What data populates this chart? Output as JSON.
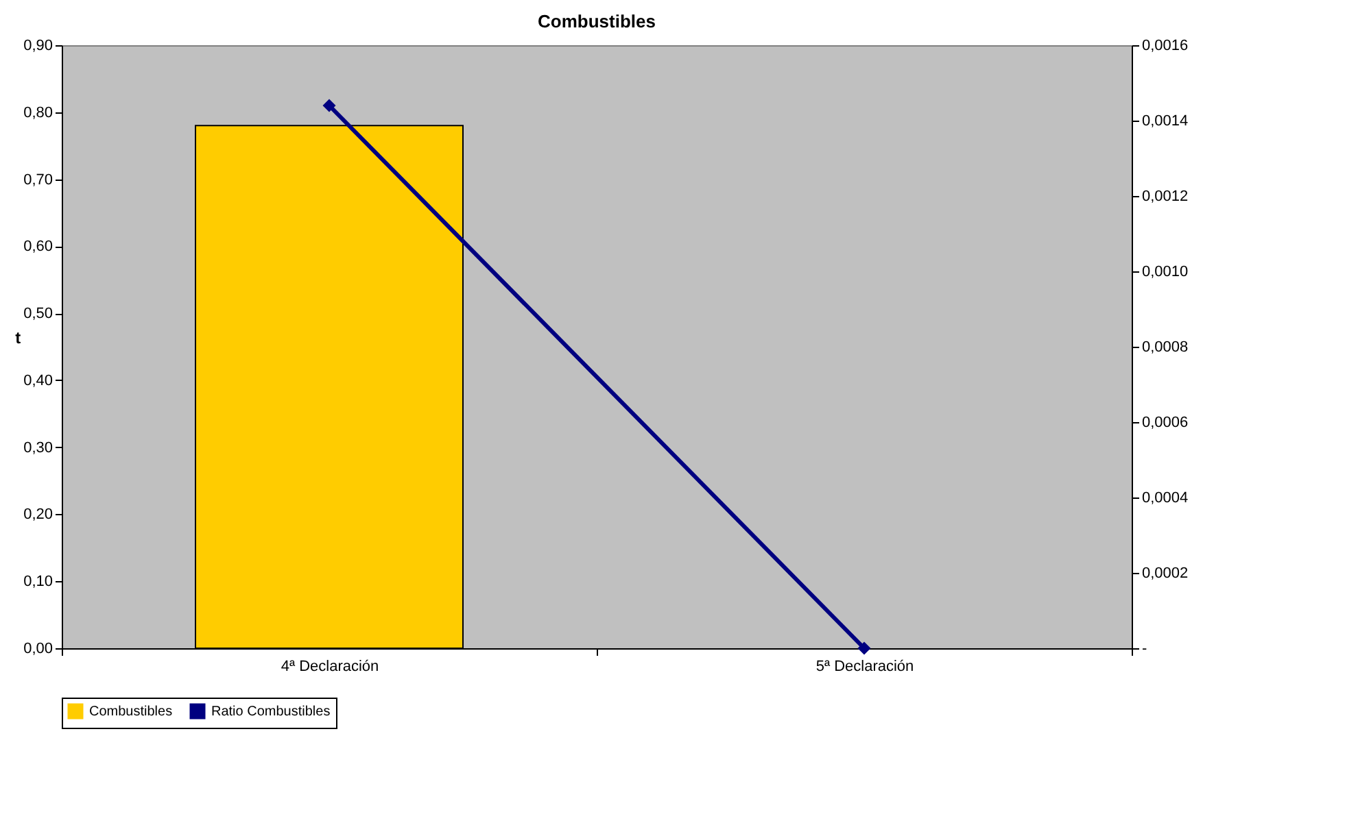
{
  "chart_data": {
    "type": "bar",
    "title": "Combustibles",
    "ylabel": "t",
    "categories": [
      "4ª Declaración",
      "5ª Declaración"
    ],
    "series": [
      {
        "name": "Combustibles",
        "color": "#ffcc00",
        "values": [
          0.78,
          null
        ]
      },
      {
        "name": "Ratio Combustibles",
        "type": "line",
        "axis": "y2",
        "color": "#000080",
        "marker": "diamond",
        "values": [
          0.00144,
          0
        ]
      }
    ],
    "ylim": [
      0,
      0.9
    ],
    "yticks": [
      {
        "value": 0,
        "label": "0,00"
      },
      {
        "value": 0.1,
        "label": "0,10"
      },
      {
        "value": 0.2,
        "label": "0,20"
      },
      {
        "value": 0.3,
        "label": "0,30"
      },
      {
        "value": 0.4,
        "label": "0,40"
      },
      {
        "value": 0.5,
        "label": "0,50"
      },
      {
        "value": 0.6,
        "label": "0,60"
      },
      {
        "value": 0.7,
        "label": "0,70"
      },
      {
        "value": 0.8,
        "label": "0,80"
      },
      {
        "value": 0.9,
        "label": "0,90"
      }
    ],
    "y2lim": [
      0,
      0.0016
    ],
    "y2ticks": [
      {
        "value": 0,
        "label": "-"
      },
      {
        "value": 0.0002,
        "label": "0,0002"
      },
      {
        "value": 0.0004,
        "label": "0,0004"
      },
      {
        "value": 0.0006,
        "label": "0,0006"
      },
      {
        "value": 0.0008,
        "label": "0,0008"
      },
      {
        "value": 0.001,
        "label": "0,0010"
      },
      {
        "value": 0.0012,
        "label": "0,0012"
      },
      {
        "value": 0.0014,
        "label": "0,0014"
      },
      {
        "value": 0.0016,
        "label": "0,0016"
      }
    ],
    "grid": false,
    "legend": "bottom"
  }
}
